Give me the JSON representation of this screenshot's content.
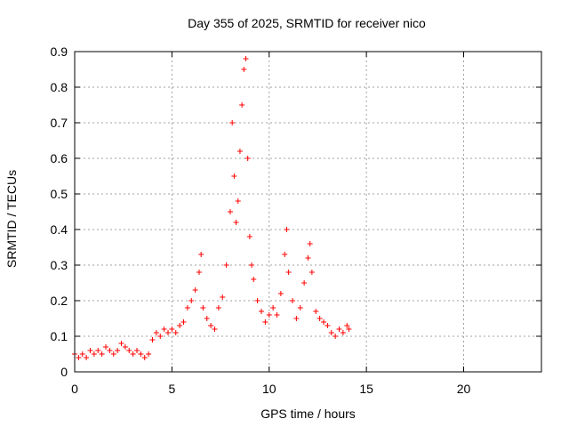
{
  "chart_data": {
    "type": "scatter",
    "title": "Day 355 of 2025, SRMTID for receiver nico",
    "xlabel": "GPS time / hours",
    "ylabel": "SRMTID / TECUs",
    "xlim": [
      0,
      24
    ],
    "ylim": [
      0,
      0.9
    ],
    "xticks": [
      0,
      5,
      10,
      15,
      20
    ],
    "yticks": [
      0,
      0.1,
      0.2,
      0.3,
      0.4,
      0.5,
      0.6,
      0.7,
      0.8,
      0.9
    ],
    "grid": true,
    "marker": "+",
    "color": "#ff0000",
    "series": [
      {
        "name": "SRMTID",
        "x": [
          0.0,
          0.2,
          0.4,
          0.6,
          0.8,
          1.0,
          1.2,
          1.4,
          1.6,
          1.8,
          2.0,
          2.2,
          2.4,
          2.6,
          2.8,
          3.0,
          3.2,
          3.4,
          3.6,
          3.8,
          4.0,
          4.2,
          4.4,
          4.6,
          4.8,
          5.0,
          5.2,
          5.4,
          5.6,
          5.8,
          6.0,
          6.2,
          6.4,
          6.5,
          6.6,
          6.8,
          7.0,
          7.2,
          7.4,
          7.6,
          7.8,
          8.0,
          8.1,
          8.2,
          8.3,
          8.4,
          8.5,
          8.6,
          8.7,
          8.8,
          8.9,
          9.0,
          9.1,
          9.2,
          9.4,
          9.6,
          9.8,
          10.0,
          10.2,
          10.4,
          10.6,
          10.8,
          10.9,
          11.0,
          11.2,
          11.4,
          11.6,
          11.8,
          12.0,
          12.1,
          12.2,
          12.4,
          12.6,
          12.8,
          13.0,
          13.2,
          13.4,
          13.6,
          13.8,
          14.0,
          14.1
        ],
        "y": [
          0.05,
          0.04,
          0.05,
          0.04,
          0.06,
          0.05,
          0.06,
          0.05,
          0.07,
          0.06,
          0.05,
          0.06,
          0.08,
          0.07,
          0.06,
          0.05,
          0.06,
          0.05,
          0.04,
          0.05,
          0.09,
          0.11,
          0.1,
          0.12,
          0.11,
          0.12,
          0.11,
          0.13,
          0.14,
          0.18,
          0.2,
          0.23,
          0.28,
          0.33,
          0.18,
          0.15,
          0.13,
          0.12,
          0.18,
          0.21,
          0.3,
          0.45,
          0.7,
          0.55,
          0.42,
          0.48,
          0.62,
          0.75,
          0.85,
          0.88,
          0.6,
          0.38,
          0.3,
          0.26,
          0.2,
          0.17,
          0.14,
          0.16,
          0.18,
          0.16,
          0.22,
          0.33,
          0.4,
          0.28,
          0.2,
          0.15,
          0.18,
          0.25,
          0.32,
          0.36,
          0.28,
          0.17,
          0.15,
          0.14,
          0.13,
          0.11,
          0.1,
          0.12,
          0.11,
          0.13,
          0.12
        ]
      }
    ]
  }
}
